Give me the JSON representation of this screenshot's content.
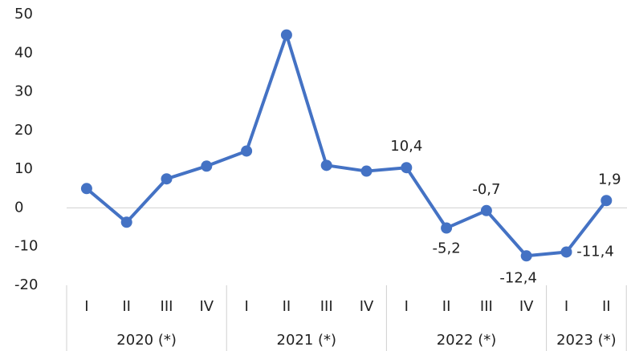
{
  "chart_data": {
    "type": "line",
    "groups": [
      {
        "name": "2020 (*)",
        "categories": [
          "I",
          "II",
          "III",
          "IV"
        ]
      },
      {
        "name": "2021 (*)",
        "categories": [
          "I",
          "II",
          "III",
          "IV"
        ]
      },
      {
        "name": "2022 (*)",
        "categories": [
          "I",
          "II",
          "III",
          "IV"
        ]
      },
      {
        "name": "2023 (*)",
        "categories": [
          "I",
          "II"
        ]
      }
    ],
    "series": [
      {
        "color": "#4472c4",
        "values": [
          5.0,
          -3.7,
          7.5,
          10.8,
          14.7,
          44.7,
          11.0,
          9.5,
          10.4,
          -5.2,
          -0.7,
          -12.4,
          -11.4,
          1.9
        ],
        "value_labels": [
          null,
          null,
          null,
          null,
          null,
          null,
          null,
          null,
          "10,4",
          "-5,2",
          "-0,7",
          "-12,4",
          "-11,4",
          "1,9"
        ]
      }
    ],
    "ylim": [
      -20,
      50
    ],
    "yticks": [
      -20,
      -10,
      0,
      10,
      20,
      30,
      40,
      50
    ]
  }
}
